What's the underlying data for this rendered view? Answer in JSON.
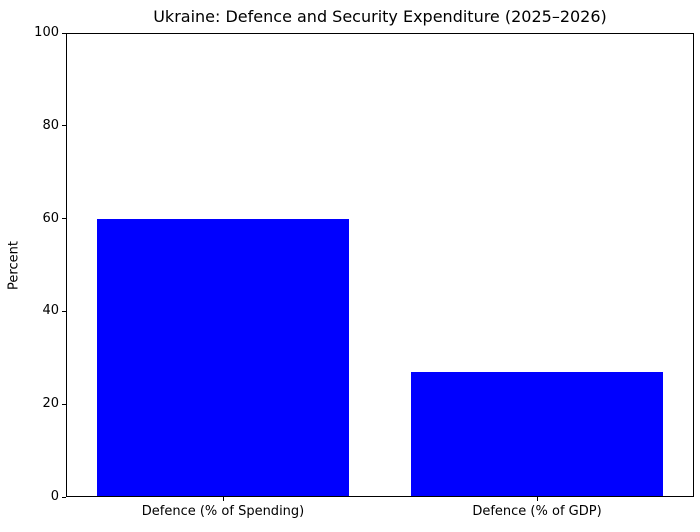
{
  "chart_data": {
    "type": "bar",
    "title": "Ukraine: Defence and Security Expenditure (2025–2026)",
    "categories": [
      "Defence (% of Spending)",
      "Defence (% of GDP)"
    ],
    "values": [
      60,
      27
    ],
    "xlabel": "",
    "ylabel": "Percent",
    "ylim": [
      0,
      100
    ],
    "yticks": [
      0,
      20,
      40,
      60,
      80,
      100
    ],
    "bar_color": "#0000ff",
    "background_color": "#ffffff",
    "spine_color": "#000000",
    "grid": false,
    "legend": null
  }
}
